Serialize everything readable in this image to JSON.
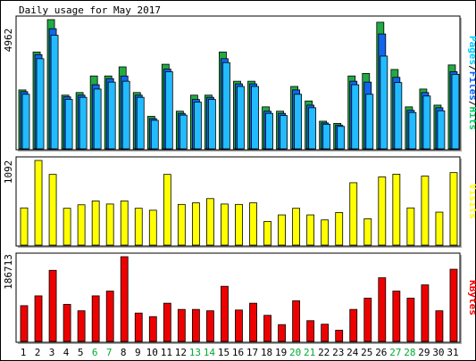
{
  "chart_data": {
    "type": "bar",
    "title": "Daily usage for May 2017",
    "days": [
      "1",
      "2",
      "3",
      "4",
      "5",
      "6",
      "7",
      "8",
      "9",
      "10",
      "11",
      "12",
      "13",
      "14",
      "15",
      "16",
      "17",
      "18",
      "19",
      "20",
      "21",
      "22",
      "23",
      "24",
      "25",
      "26",
      "27",
      "28",
      "29",
      "30",
      "31"
    ],
    "weekend_days": [
      "6",
      "7",
      "13",
      "14",
      "20",
      "21",
      "27",
      "28"
    ],
    "panels": [
      {
        "id": "top",
        "scale_label": "4962",
        "scale_max": 4962,
        "right_label": [
          {
            "text": "Pages",
            "color": "#00ccff"
          },
          {
            "text": "/",
            "color": "#000000"
          },
          {
            "text": "Files",
            "color": "#0066ff"
          },
          {
            "text": "/",
            "color": "#000000"
          },
          {
            "text": "Hits",
            "color": "#00cc66"
          }
        ],
        "series": [
          {
            "name": "Hits",
            "color": "#22aa44",
            "values": [
              2262,
              3719,
              4962,
              2062,
              2163,
              2799,
              2799,
              3148,
              2163,
              1249,
              3248,
              1446,
              2062,
              2062,
              3719,
              2596,
              2596,
              1613,
              1446,
              2396,
              1839,
              1062,
              979,
              2799,
              2896,
              4862,
              3048,
              1613,
              2296,
              1679,
              3222
            ]
          },
          {
            "name": "Files",
            "color": "#1166ee",
            "values": [
              2196,
              3619,
              4612,
              1996,
              2062,
              2462,
              2696,
              2796,
              2062,
              1162,
              3062,
              1362,
              1896,
              1979,
              3462,
              2496,
              2496,
              1446,
              1362,
              2262,
              1679,
              996,
              912,
              2596,
              2562,
              4412,
              2746,
              1479,
              2162,
              1579,
              2962
            ]
          },
          {
            "name": "Pages",
            "color": "#22bbff",
            "values": [
              2096,
              3462,
              4362,
              1896,
              1979,
              2296,
              2562,
              2596,
              1979,
              1096,
              2962,
              1296,
              1796,
              1896,
              3312,
              2396,
              2396,
              1362,
              1279,
              2096,
              1579,
              946,
              862,
              2462,
              2096,
              3562,
              2546,
              1396,
              2029,
              1462,
              2862
            ]
          }
        ]
      },
      {
        "id": "middle",
        "scale_label": "1092",
        "scale_max": 1092,
        "right_label": [
          {
            "text": "Visits",
            "color": "#ffff00"
          }
        ],
        "series": [
          {
            "name": "Visits",
            "color": "#ffff00",
            "values": [
              480,
              1092,
              912,
              475,
              520,
              570,
              530,
              570,
              475,
              450,
              912,
              525,
              545,
              600,
              530,
              525,
              545,
              305,
              390,
              475,
              390,
              325,
              420,
              805,
              340,
              880,
              915,
              480,
              890,
              425,
              935
            ]
          }
        ]
      },
      {
        "id": "bottom",
        "scale_label": "186713",
        "scale_max": 186713,
        "right_label": [
          {
            "text": "KBytes",
            "color": "#ff0000"
          }
        ],
        "series": [
          {
            "name": "KBytes",
            "color": "#ee0000",
            "values": [
              78800,
              100400,
              156700,
              81600,
              67500,
              100400,
              110900,
              186713,
              62500,
              54600,
              84200,
              70500,
              70500,
              67500,
              121500,
              69200,
              84200,
              57500,
              37000,
              89500,
              45700,
              37900,
              24600,
              70500,
              95300,
              140300,
              110900,
              95300,
              124600,
              67500,
              159100
            ]
          }
        ]
      }
    ]
  }
}
